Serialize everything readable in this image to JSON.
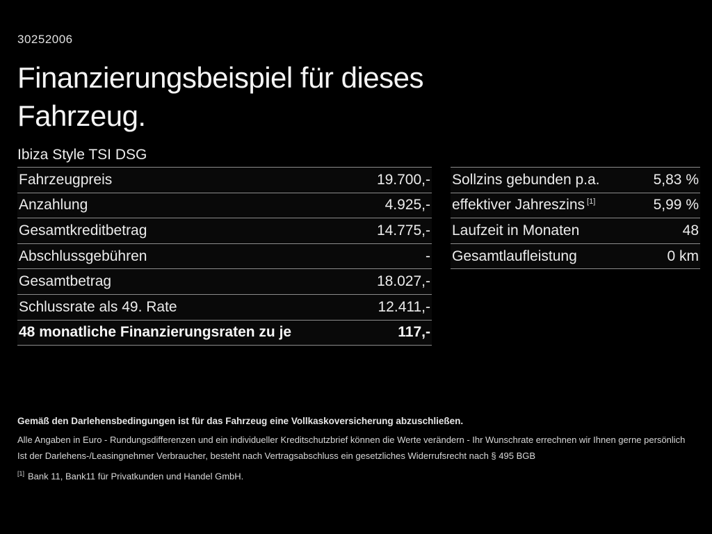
{
  "page": {
    "background": "#000000",
    "text_color": "#f0f0f0",
    "divider_color": "#8c8c8c",
    "doc_id": "30252006",
    "title_line1": "Finanzierungsbeispiel für dieses",
    "title_line2": "Fahrzeug.",
    "vehicle_model": "Ibiza Style TSI DSG"
  },
  "left_table": {
    "rows": [
      {
        "label": "Fahrzeugpreis",
        "value": "19.700,-",
        "bold": false
      },
      {
        "label": "Anzahlung",
        "value": "4.925,-",
        "bold": false
      },
      {
        "label": "Gesamtkreditbetrag",
        "value": "14.775,-",
        "bold": false
      },
      {
        "label": "Abschlussgebühren",
        "value": "-",
        "bold": false
      },
      {
        "label": "Gesamtbetrag",
        "value": "18.027,-",
        "bold": false
      },
      {
        "label": "Schlussrate als 49. Rate",
        "value": "12.411,-",
        "bold": false
      },
      {
        "label": "48 monatliche Finanzierungsraten zu je",
        "value": "117,-",
        "bold": true
      }
    ]
  },
  "right_table": {
    "rows": [
      {
        "label": "Sollzins gebunden p.a.",
        "value": "5,83 %"
      },
      {
        "label": "effektiver Jahreszins",
        "label_sup": "[1]",
        "value": "5,99 %"
      },
      {
        "label": "Laufzeit in Monaten",
        "value": "48"
      },
      {
        "label": "Gesamtlaufleistung",
        "value": "0 km"
      }
    ]
  },
  "footer": {
    "insurance_note": "Gemäß den Darlehensbedingungen ist für das Fahrzeug eine Vollkaskoversicherung abzuschließen.",
    "note_line1": "Alle Angaben in Euro - Rundungsdifferenzen und ein individueller Kreditschutzbrief können die Werte verändern - Ihr Wunschrate errechnen wir Ihnen gerne persönlich",
    "note_line2": "Ist der Darlehens-/Leasingnehmer Verbraucher, besteht nach Vertragsabschluss ein gesetzliches Widerrufsrecht nach § 495 BGB",
    "footnote_marker": "[1]",
    "footnote_text": "Bank 11, Bank11 für Privatkunden und Handel GmbH."
  }
}
